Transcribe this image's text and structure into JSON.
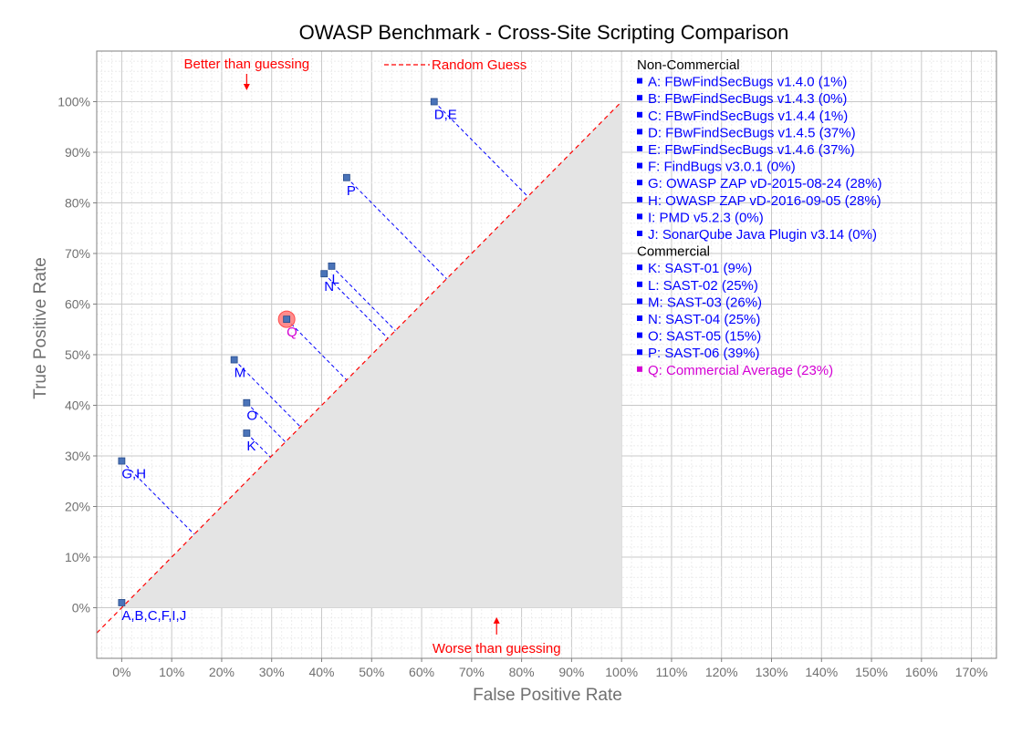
{
  "chart_data": {
    "type": "scatter",
    "title": "OWASP Benchmark - Cross-Site Scripting Comparison",
    "xlabel": "False Positive Rate",
    "ylabel": "True Positive Rate",
    "xlim": [
      -5,
      175
    ],
    "ylim": [
      -10,
      110
    ],
    "grid": true,
    "x_ticks": [
      {
        "v": 0,
        "label": "0%"
      },
      {
        "v": 10,
        "label": "10%"
      },
      {
        "v": 20,
        "label": "20%"
      },
      {
        "v": 30,
        "label": "30%"
      },
      {
        "v": 40,
        "label": "40%"
      },
      {
        "v": 50,
        "label": "50%"
      },
      {
        "v": 60,
        "label": "60%"
      },
      {
        "v": 70,
        "label": "70%"
      },
      {
        "v": 80,
        "label": "80%"
      },
      {
        "v": 90,
        "label": "90%"
      },
      {
        "v": 100,
        "label": "100%"
      },
      {
        "v": 110,
        "label": "110%"
      },
      {
        "v": 120,
        "label": "120%"
      },
      {
        "v": 130,
        "label": "130%"
      },
      {
        "v": 140,
        "label": "140%"
      },
      {
        "v": 150,
        "label": "150%"
      },
      {
        "v": 160,
        "label": "160%"
      },
      {
        "v": 170,
        "label": "170%"
      }
    ],
    "y_ticks": [
      {
        "v": 0,
        "label": "0%"
      },
      {
        "v": 10,
        "label": "10%"
      },
      {
        "v": 20,
        "label": "20%"
      },
      {
        "v": 30,
        "label": "30%"
      },
      {
        "v": 40,
        "label": "40%"
      },
      {
        "v": 50,
        "label": "50%"
      },
      {
        "v": 60,
        "label": "60%"
      },
      {
        "v": 70,
        "label": "70%"
      },
      {
        "v": 80,
        "label": "80%"
      },
      {
        "v": 90,
        "label": "90%"
      },
      {
        "v": 100,
        "label": "100%"
      }
    ],
    "random_guess_label": "Random Guess",
    "better_label": "Better than guessing",
    "worse_label": "Worse than guessing",
    "points": [
      {
        "label": "A,B,C,F,I,J",
        "x": 0,
        "y": 1,
        "color": "#0000ff"
      },
      {
        "label": "G,H",
        "x": 0,
        "y": 29,
        "color": "#0000ff"
      },
      {
        "label": "K",
        "x": 25,
        "y": 34.5,
        "color": "#0000ff"
      },
      {
        "label": "O",
        "x": 25,
        "y": 40.5,
        "color": "#0000ff"
      },
      {
        "label": "M",
        "x": 22.5,
        "y": 49,
        "color": "#0000ff"
      },
      {
        "label": "Q",
        "x": 33,
        "y": 57,
        "color": "#d400d4",
        "highlight": true
      },
      {
        "label": "N",
        "x": 40.5,
        "y": 66,
        "color": "#0000ff"
      },
      {
        "label": "L",
        "x": 42,
        "y": 67.5,
        "color": "#0000ff"
      },
      {
        "label": "P",
        "x": 45,
        "y": 85,
        "color": "#0000ff"
      },
      {
        "label": "D,E",
        "x": 62.5,
        "y": 100,
        "color": "#0000ff"
      }
    ],
    "legend": {
      "placement": "right",
      "groups": [
        {
          "heading": "Non-Commercial",
          "entries": [
            {
              "text": "A: FBwFindSecBugs v1.4.0 (1%)",
              "color": "#0000ff"
            },
            {
              "text": "B: FBwFindSecBugs v1.4.3 (0%)",
              "color": "#0000ff"
            },
            {
              "text": "C: FBwFindSecBugs v1.4.4 (1%)",
              "color": "#0000ff"
            },
            {
              "text": "D: FBwFindSecBugs v1.4.5 (37%)",
              "color": "#0000ff"
            },
            {
              "text": "E: FBwFindSecBugs v1.4.6 (37%)",
              "color": "#0000ff"
            },
            {
              "text": "F: FindBugs v3.0.1 (0%)",
              "color": "#0000ff"
            },
            {
              "text": "G: OWASP ZAP vD-2015-08-24 (28%)",
              "color": "#0000ff"
            },
            {
              "text": "H: OWASP ZAP vD-2016-09-05 (28%)",
              "color": "#0000ff"
            },
            {
              "text": "I:  PMD v5.2.3 (0%)",
              "color": "#0000ff"
            },
            {
              "text": "J: SonarQube Java Plugin v3.14 (0%)",
              "color": "#0000ff"
            }
          ]
        },
        {
          "heading": "Commercial",
          "entries": [
            {
              "text": "K: SAST-01 (9%)",
              "color": "#0000ff"
            },
            {
              "text": "L: SAST-02 (25%)",
              "color": "#0000ff"
            },
            {
              "text": "M: SAST-03 (26%)",
              "color": "#0000ff"
            },
            {
              "text": "N: SAST-04 (25%)",
              "color": "#0000ff"
            },
            {
              "text": "O: SAST-05 (15%)",
              "color": "#0000ff"
            },
            {
              "text": "P: SAST-06 (39%)",
              "color": "#0000ff"
            },
            {
              "text": "Q: Commercial Average (23%)",
              "color": "#d400d4"
            }
          ]
        }
      ]
    },
    "colors": {
      "point_fill": "#4a73b8",
      "projection_line": "#0000ff",
      "random_line": "#ff0000",
      "worse_region": "#e4e4e4",
      "highlight_ring": "#ff7070",
      "annotation_text": "#ff0000"
    }
  }
}
